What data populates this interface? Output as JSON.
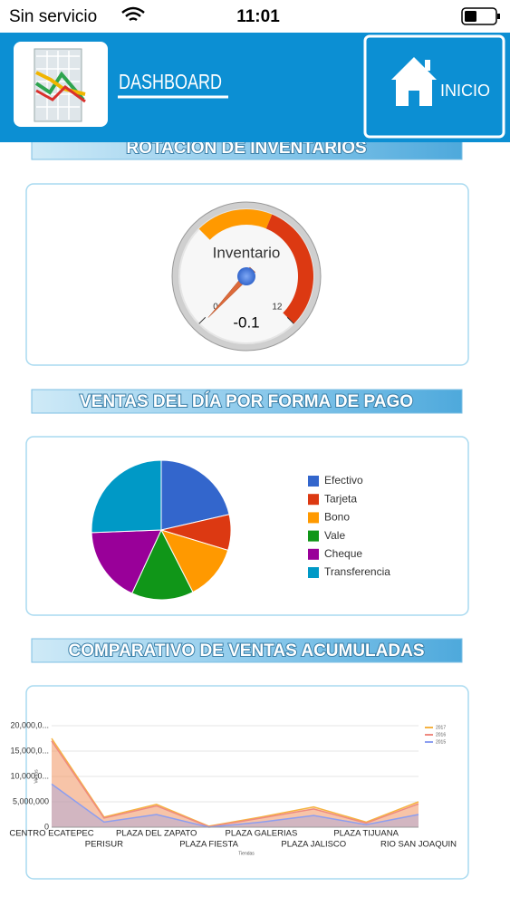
{
  "status_bar": {
    "carrier": "Sin servicio",
    "time": "11:01"
  },
  "header": {
    "title": "DASHBOARD",
    "home_button": "INICIO"
  },
  "sections": [
    {
      "title": "ROTACIÓN DE INVENTARIOS",
      "chart_data": {
        "type": "gauge",
        "label": "Inventario",
        "value": -0.1,
        "lim": [
          0,
          12
        ],
        "ticks": [
          0,
          12
        ],
        "bands": [
          {
            "from": 4,
            "to": 7,
            "color": "#ff9900"
          },
          {
            "from": 7,
            "to": 12,
            "color": "#dc3912"
          }
        ]
      }
    },
    {
      "title": "VENTAS DEL DÍA POR FORMA DE PAGO",
      "chart_data": {
        "type": "pie",
        "categories": [
          "Efectivo",
          "Tarjeta",
          "Bono",
          "Vale",
          "Cheque",
          "Transferencia"
        ],
        "values": [
          21.4,
          8.3,
          12.8,
          14.4,
          17.5,
          25.6
        ],
        "colors": [
          "#3366cc",
          "#dc3912",
          "#ff9900",
          "#109618",
          "#990099",
          "#0099c6"
        ],
        "legend": "right"
      }
    },
    {
      "title": "COMPARATIVO DE VENTAS ACUMULADAS",
      "chart_data": {
        "type": "area",
        "x_label": "Tiendas",
        "y_label": "Ventas",
        "categories": [
          "CENTRO ECATEPEC",
          "PERISUR",
          "PLAZA DEL ZAPATO",
          "PLAZA FIESTA",
          "PLAZA GALERIAS",
          "PLAZA JALISCO",
          "PLAZA TIJUANA",
          "RIO SAN JOAQUIN"
        ],
        "series": [
          {
            "name": "2017",
            "color": "#f5b342",
            "values": [
              17500000,
              2000000,
              4500000,
              200000,
              2000000,
              4000000,
              1000000,
              5000000
            ]
          },
          {
            "name": "2016",
            "color": "#ef8a80",
            "values": [
              17000000,
              1800000,
              4200000,
              100000,
              1800000,
              3600000,
              800000,
              4600000
            ]
          },
          {
            "name": "2015",
            "color": "#8c9ef0",
            "values": [
              8500000,
              1000000,
              2500000,
              0,
              1000000,
              2300000,
              500000,
              2500000
            ]
          }
        ],
        "ylim": [
          0,
          20000000
        ],
        "yticks": [
          0,
          {
            "value": 5000000,
            "label": "5,000,000"
          },
          {
            "value": 10000000,
            "label": "10,000,0..."
          },
          {
            "value": 15000000,
            "label": "15,000,0..."
          },
          {
            "value": 20000000,
            "label": "20,000,0..."
          }
        ],
        "grid": true,
        "legend": "top-right"
      }
    }
  ]
}
